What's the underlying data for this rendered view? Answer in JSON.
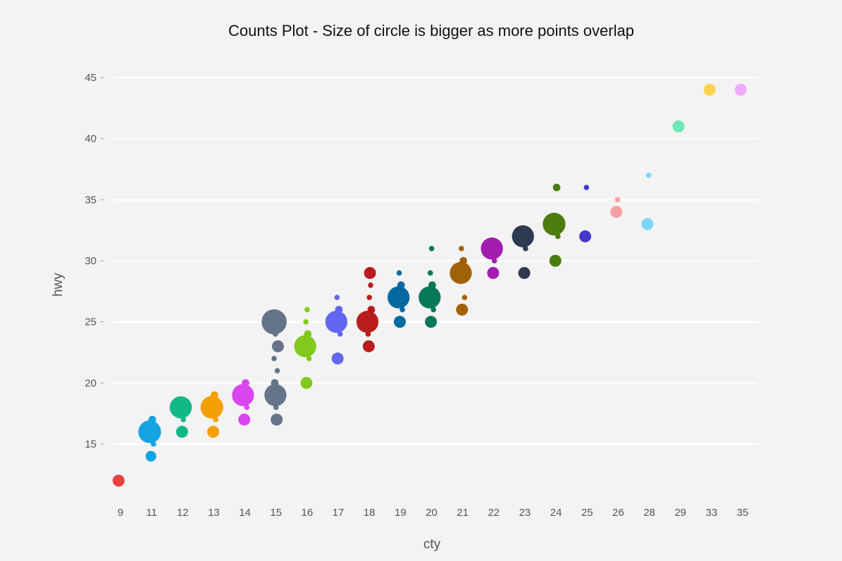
{
  "chart_data": {
    "type": "scatter",
    "title": "Counts Plot - Size of circle is bigger as more points overlap",
    "xlabel": "cty",
    "ylabel": "hwy",
    "x_categories": [
      "9",
      "11",
      "12",
      "13",
      "14",
      "15",
      "16",
      "17",
      "18",
      "19",
      "20",
      "21",
      "22",
      "23",
      "24",
      "25",
      "26",
      "28",
      "29",
      "33",
      "35"
    ],
    "ylim": [
      10.5,
      46.5
    ],
    "yticks": [
      15,
      20,
      25,
      30,
      35,
      40,
      45
    ],
    "grid": true,
    "size_encoding": "count",
    "series": [
      {
        "x": "9",
        "color": "#e8413f",
        "points": [
          {
            "y": 12,
            "count": 5
          }
        ]
      },
      {
        "x": "11",
        "color": "#14a3e3",
        "points": [
          {
            "y": 14,
            "count": 4
          },
          {
            "y": 15,
            "count": 1
          },
          {
            "y": 16,
            "count": 18
          },
          {
            "y": 17,
            "count": 2
          }
        ]
      },
      {
        "x": "12",
        "color": "#12b886",
        "points": [
          {
            "y": 16,
            "count": 5
          },
          {
            "y": 17,
            "count": 1
          },
          {
            "y": 18,
            "count": 17
          }
        ]
      },
      {
        "x": "13",
        "color": "#f59f00",
        "points": [
          {
            "y": 16,
            "count": 5
          },
          {
            "y": 17,
            "count": 1
          },
          {
            "y": 18,
            "count": 18
          },
          {
            "y": 19,
            "count": 2
          }
        ]
      },
      {
        "x": "14",
        "color": "#d946ef",
        "points": [
          {
            "y": 17,
            "count": 5
          },
          {
            "y": 18,
            "count": 1
          },
          {
            "y": 19,
            "count": 17
          },
          {
            "y": 20,
            "count": 2
          }
        ]
      },
      {
        "x": "15",
        "color": "#64748b",
        "points": [
          {
            "y": 17,
            "count": 5
          },
          {
            "y": 18,
            "count": 1
          },
          {
            "y": 19,
            "count": 17
          },
          {
            "y": 20,
            "count": 2
          },
          {
            "y": 21,
            "count": 1
          },
          {
            "y": 22,
            "count": 1
          },
          {
            "y": 23,
            "count": 5
          },
          {
            "y": 24,
            "count": 1
          },
          {
            "y": 25,
            "count": 22
          }
        ]
      },
      {
        "x": "16",
        "color": "#82c91e",
        "points": [
          {
            "y": 20,
            "count": 5
          },
          {
            "y": 22,
            "count": 1
          },
          {
            "y": 23,
            "count": 17
          },
          {
            "y": 24,
            "count": 2
          },
          {
            "y": 25,
            "count": 1
          },
          {
            "y": 26,
            "count": 1
          }
        ]
      },
      {
        "x": "17",
        "color": "#6366f1",
        "points": [
          {
            "y": 22,
            "count": 5
          },
          {
            "y": 24,
            "count": 1
          },
          {
            "y": 25,
            "count": 17
          },
          {
            "y": 26,
            "count": 2
          },
          {
            "y": 27,
            "count": 1
          }
        ]
      },
      {
        "x": "18",
        "color": "#b91c1c",
        "points": [
          {
            "y": 23,
            "count": 5
          },
          {
            "y": 24,
            "count": 1
          },
          {
            "y": 25,
            "count": 17
          },
          {
            "y": 26,
            "count": 2
          },
          {
            "y": 27,
            "count": 1
          },
          {
            "y": 28,
            "count": 1
          },
          {
            "y": 29,
            "count": 5
          }
        ]
      },
      {
        "x": "19",
        "color": "#0369a1",
        "points": [
          {
            "y": 25,
            "count": 5
          },
          {
            "y": 26,
            "count": 1
          },
          {
            "y": 27,
            "count": 17
          },
          {
            "y": 28,
            "count": 2
          },
          {
            "y": 29,
            "count": 1
          }
        ]
      },
      {
        "x": "20",
        "color": "#047857",
        "points": [
          {
            "y": 25,
            "count": 5
          },
          {
            "y": 26,
            "count": 1
          },
          {
            "y": 27,
            "count": 17
          },
          {
            "y": 28,
            "count": 2
          },
          {
            "y": 29,
            "count": 1
          },
          {
            "y": 31,
            "count": 1
          }
        ]
      },
      {
        "x": "21",
        "color": "#a16207",
        "points": [
          {
            "y": 26,
            "count": 5
          },
          {
            "y": 27,
            "count": 1
          },
          {
            "y": 29,
            "count": 17
          },
          {
            "y": 30,
            "count": 2
          },
          {
            "y": 31,
            "count": 1
          }
        ]
      },
      {
        "x": "22",
        "color": "#a21caf",
        "points": [
          {
            "y": 29,
            "count": 5
          },
          {
            "y": 30,
            "count": 1
          },
          {
            "y": 31,
            "count": 17
          }
        ]
      },
      {
        "x": "23",
        "color": "#2d3a4f",
        "points": [
          {
            "y": 29,
            "count": 5
          },
          {
            "y": 31,
            "count": 1
          },
          {
            "y": 32,
            "count": 17
          }
        ]
      },
      {
        "x": "24",
        "color": "#4d7c0f",
        "points": [
          {
            "y": 30,
            "count": 5
          },
          {
            "y": 32,
            "count": 1
          },
          {
            "y": 33,
            "count": 18
          },
          {
            "y": 36,
            "count": 2
          }
        ]
      },
      {
        "x": "25",
        "color": "#4338ca",
        "points": [
          {
            "y": 32,
            "count": 5
          },
          {
            "y": 36,
            "count": 1
          }
        ]
      },
      {
        "x": "26",
        "color": "#f8a0a4",
        "points": [
          {
            "y": 34,
            "count": 5
          },
          {
            "y": 35,
            "count": 1
          }
        ]
      },
      {
        "x": "28",
        "color": "#7dd3fc",
        "points": [
          {
            "y": 33,
            "count": 5
          },
          {
            "y": 37,
            "count": 1
          }
        ]
      },
      {
        "x": "29",
        "color": "#6ee7b7",
        "points": [
          {
            "y": 41,
            "count": 5
          }
        ]
      },
      {
        "x": "33",
        "color": "#fcd34d",
        "points": [
          {
            "y": 44,
            "count": 5
          }
        ]
      },
      {
        "x": "35",
        "color": "#f0abfc",
        "points": [
          {
            "y": 44,
            "count": 5
          }
        ]
      }
    ]
  }
}
